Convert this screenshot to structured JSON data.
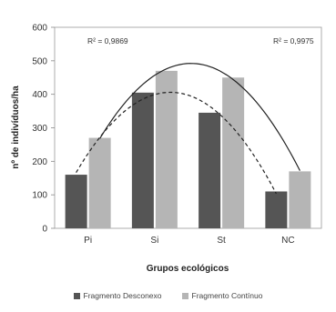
{
  "chart_data": {
    "type": "bar",
    "categories": [
      "Pi",
      "Si",
      "St",
      "NC"
    ],
    "series": [
      {
        "name": "Fragmento Desconexo",
        "values": [
          160,
          405,
          345,
          110
        ],
        "color": "#555555"
      },
      {
        "name": "Fragmento Contínuo",
        "values": [
          270,
          470,
          450,
          170
        ],
        "color": "#b5b5b5"
      }
    ],
    "trendlines": [
      {
        "series": "Fragmento Contínuo",
        "style": "solid",
        "label": "R² = 0,9975"
      },
      {
        "series": "Fragmento Desconexo",
        "style": "dashed",
        "label": "R² = 0,9869"
      }
    ],
    "xlabel": "Grupos ecológicos",
    "ylabel": "nº de indivíduos/ha",
    "ylim": [
      0,
      600
    ],
    "yticks": [
      0,
      100,
      200,
      300,
      400,
      500,
      600
    ],
    "grid": false,
    "legend_position": "bottom"
  }
}
